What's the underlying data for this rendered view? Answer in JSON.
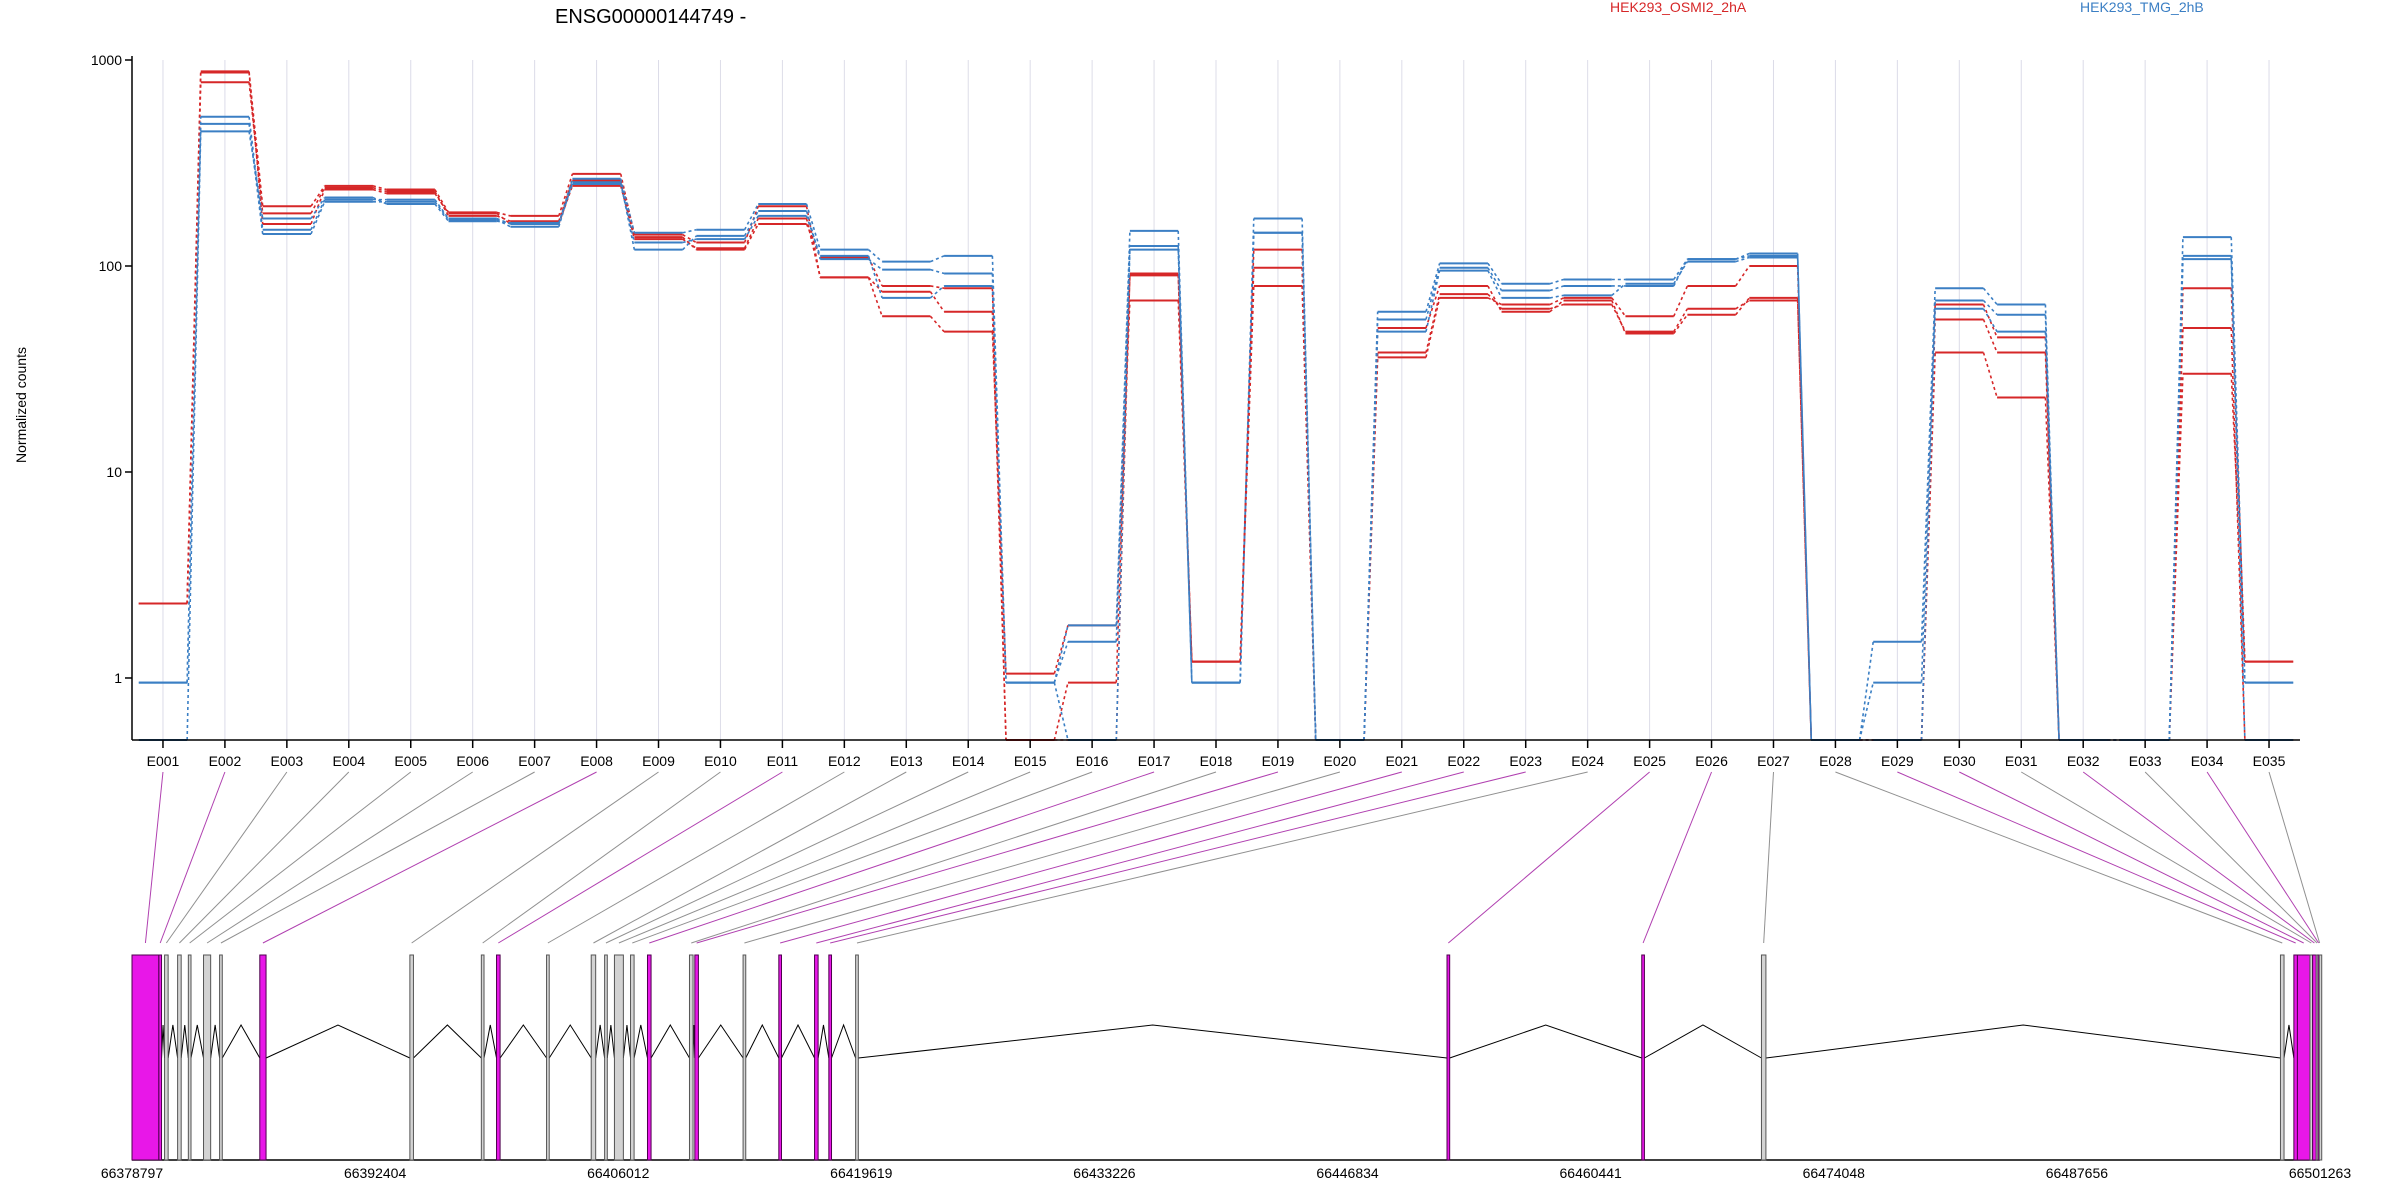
{
  "chart_data": {
    "type": "line",
    "title": "ENSG00000144749 -",
    "ylabel": "Normalized counts",
    "xlabel": "",
    "yscale": "log",
    "ylim": [
      0.5,
      1000
    ],
    "yticks": [
      "1",
      "10",
      "100",
      "1000"
    ],
    "legend": [
      "HEK293_OSMI2_2hA",
      "HEK293_TMG_2hB"
    ],
    "colors": {
      "HEK293_OSMI2_2hA": "#d62728",
      "HEK293_TMG_2hB": "#3b7fc4",
      "exon_signif": "#e817e8",
      "exon_default": "#d3d3d3",
      "exon_border": "#4d004d"
    },
    "categories": [
      "E001",
      "E002",
      "E003",
      "E004",
      "E005",
      "E006",
      "E007",
      "E008",
      "E009",
      "E010",
      "E011",
      "E012",
      "E013",
      "E014",
      "E015",
      "E016",
      "E017",
      "E018",
      "E019",
      "E020",
      "E021",
      "E022",
      "E023",
      "E024",
      "E025",
      "E026",
      "E027",
      "E028",
      "E029",
      "E030",
      "E031",
      "E032",
      "E033",
      "E034",
      "E035"
    ],
    "series": [
      {
        "group": "HEK293_OSMI2_2hA",
        "values": [
          2.3,
          880,
          195,
          245,
          235,
          182,
          175,
          280,
          142,
          130,
          195,
          88,
          75,
          60,
          0.5,
          0.95,
          90,
          1.2,
          98,
          0.5,
          38,
          73,
          62,
          65,
          48,
          62,
          68,
          0.5,
          0.5,
          55,
          38,
          0.5,
          0.5,
          50,
          0.5
        ]
      },
      {
        "group": "HEK293_OSMI2_2hA",
        "values": [
          2.3,
          780,
          180,
          240,
          230,
          175,
          165,
          260,
          135,
          122,
          170,
          88,
          57,
          48,
          1.05,
          1.8,
          68,
          1.2,
          80,
          0.5,
          36,
          70,
          65,
          70,
          57,
          80,
          100,
          0.5,
          0.5,
          38,
          23,
          0.5,
          0.5,
          30,
          1.2
        ]
      },
      {
        "group": "HEK293_OSMI2_2hA",
        "values": [
          2.3,
          870,
          160,
          235,
          225,
          180,
          160,
          245,
          138,
          120,
          160,
          110,
          80,
          78,
          0.5,
          0.5,
          92,
          1.2,
          120,
          0.5,
          50,
          80,
          60,
          68,
          47,
          58,
          70,
          0.5,
          0.5,
          65,
          45,
          0.5,
          0.5,
          78,
          1.2
        ]
      },
      {
        "group": "HEK293_TMG_2hB",
        "values": [
          0.95,
          530,
          150,
          210,
          210,
          170,
          160,
          265,
          145,
          150,
          200,
          120,
          105,
          112,
          0.95,
          1.8,
          148,
          0.95,
          170,
          0.5,
          60,
          103,
          82,
          86,
          86,
          108,
          112,
          0.5,
          1.5,
          78,
          65,
          0.5,
          0.5,
          138,
          0.95
        ]
      },
      {
        "group": "HEK293_TMG_2hB",
        "values": [
          0.95,
          490,
          143,
          205,
          205,
          168,
          155,
          255,
          120,
          140,
          185,
          108,
          96,
          92,
          0.95,
          1.5,
          125,
          0.95,
          145,
          0.5,
          55,
          98,
          76,
          80,
          80,
          108,
          115,
          0.5,
          0.95,
          68,
          58,
          0.5,
          0.5,
          112,
          0.95
        ]
      },
      {
        "group": "HEK293_TMG_2hB",
        "values": [
          0.5,
          450,
          170,
          215,
          200,
          165,
          162,
          250,
          130,
          135,
          175,
          112,
          70,
          80,
          0.95,
          0.5,
          120,
          0.95,
          145,
          0.5,
          48,
          95,
          70,
          72,
          82,
          105,
          110,
          0.5,
          0.5,
          62,
          48,
          0.5,
          0.5,
          108,
          0.5
        ]
      }
    ],
    "gene_model": {
      "coordinate_ticks": [
        "66378797",
        "66392404",
        "66406012",
        "66419619",
        "66433226",
        "66446834",
        "66460441",
        "66474048",
        "66487656",
        "66501263"
      ],
      "coord_min": 66378797,
      "coord_max": 66501263,
      "exons": [
        {
          "id": "E001",
          "start": 66378797,
          "end": 66380300,
          "signif": true
        },
        {
          "id": "E002",
          "start": 66380300,
          "end": 66380450,
          "signif": true
        },
        {
          "id": "E003",
          "start": 66380620,
          "end": 66380820,
          "signif": false
        },
        {
          "id": "E004",
          "start": 66381350,
          "end": 66381550,
          "signif": false
        },
        {
          "id": "E005",
          "start": 66381950,
          "end": 66382100,
          "signif": false
        },
        {
          "id": "E006",
          "start": 66382800,
          "end": 66383200,
          "signif": false
        },
        {
          "id": "E007",
          "start": 66383700,
          "end": 66383850,
          "signif": false
        },
        {
          "id": "E008",
          "start": 66385950,
          "end": 66386300,
          "signif": true
        },
        {
          "id": "E009",
          "start": 66394350,
          "end": 66394550,
          "signif": false
        },
        {
          "id": "E010",
          "start": 66398350,
          "end": 66398500,
          "signif": false
        },
        {
          "id": "E011",
          "start": 66399200,
          "end": 66399400,
          "signif": true
        },
        {
          "id": "E012",
          "start": 66402000,
          "end": 66402150,
          "signif": false
        },
        {
          "id": "E013",
          "start": 66404500,
          "end": 66404750,
          "signif": false
        },
        {
          "id": "E014",
          "start": 66405250,
          "end": 66405400,
          "signif": false
        },
        {
          "id": "E015",
          "start": 66405800,
          "end": 66406300,
          "signif": false
        },
        {
          "id": "E016",
          "start": 66406700,
          "end": 66406900,
          "signif": false
        },
        {
          "id": "E017",
          "start": 66407650,
          "end": 66407850,
          "signif": true
        },
        {
          "id": "E018",
          "start": 66410000,
          "end": 66410200,
          "signif": false
        },
        {
          "id": "E019",
          "start": 66410300,
          "end": 66410500,
          "signif": true
        },
        {
          "id": "E020",
          "start": 66413000,
          "end": 66413150,
          "signif": false
        },
        {
          "id": "E021",
          "start": 66415000,
          "end": 66415150,
          "signif": true
        },
        {
          "id": "E022",
          "start": 66417000,
          "end": 66417200,
          "signif": true
        },
        {
          "id": "E023",
          "start": 66417800,
          "end": 66417950,
          "signif": true
        },
        {
          "id": "E024",
          "start": 66419300,
          "end": 66419450,
          "signif": false
        },
        {
          "id": "E025",
          "start": 66452400,
          "end": 66452550,
          "signif": true
        },
        {
          "id": "E026",
          "start": 66463300,
          "end": 66463450,
          "signif": true
        },
        {
          "id": "E027",
          "start": 66470000,
          "end": 66470250,
          "signif": false
        },
        {
          "id": "E028",
          "start": 66499050,
          "end": 66499250,
          "signif": false
        },
        {
          "id": "E029",
          "start": 66499800,
          "end": 66500000,
          "signif": true
        },
        {
          "id": "E030",
          "start": 66500000,
          "end": 66500700,
          "signif": true
        },
        {
          "id": "E031",
          "start": 66500700,
          "end": 66500850,
          "signif": false
        },
        {
          "id": "E032",
          "start": 66500850,
          "end": 66501050,
          "signif": true
        },
        {
          "id": "E033",
          "start": 66501050,
          "end": 66501150,
          "signif": false
        },
        {
          "id": "E034",
          "start": 66501150,
          "end": 66501220,
          "signif": true
        },
        {
          "id": "E035",
          "start": 66501220,
          "end": 66501263,
          "signif": false
        }
      ]
    }
  }
}
